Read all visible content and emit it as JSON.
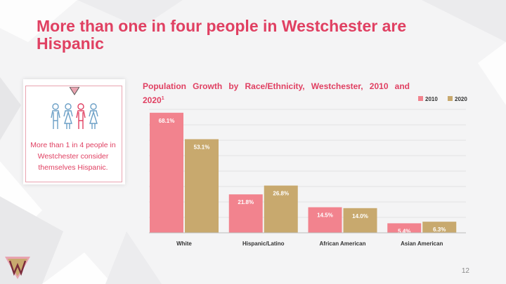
{
  "slide": {
    "title": "More than one in four people in Westchester are Hispanic",
    "page_number": "12"
  },
  "callout": {
    "text": "More than 1 in 4 people in Westchester consider themselves Hispanic.",
    "icon": "people-icon",
    "accent": "#e04062"
  },
  "chart_title": {
    "main": "Population Growth by Race/Ethnicity, Westchester, 2010 and 2020",
    "footnote_marker": "1"
  },
  "chart_data": {
    "type": "bar",
    "categories": [
      "White",
      "Hispanic/Latino",
      "African American",
      "Asian American"
    ],
    "series": [
      {
        "name": "2010",
        "values": [
          68.1,
          21.8,
          14.5,
          5.4
        ],
        "labels": [
          "68.1%",
          "21.8%",
          "14.5%",
          "5.4%"
        ],
        "color": "#f2838e"
      },
      {
        "name": "2020",
        "values": [
          53.1,
          26.8,
          14.0,
          6.3
        ],
        "labels": [
          "53.1%",
          "26.8%",
          "14.0%",
          "6.3%"
        ],
        "color": "#c8a96e"
      }
    ],
    "ylim": [
      0,
      70
    ],
    "grid": true,
    "legend": "top-right"
  }
}
